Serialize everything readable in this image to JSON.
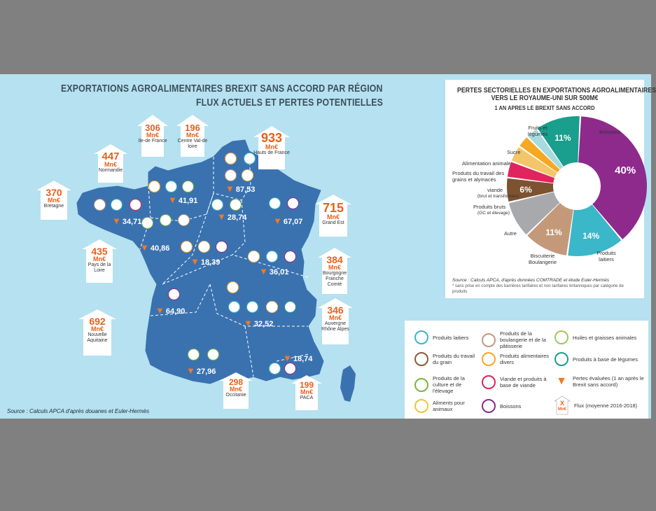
{
  "title": {
    "line1": "EXPORTATIONS AGROALIMENTAIRES BREXIT SANS ACCORD PAR RÉGION",
    "line2": "FLUX ACTUELS ET PERTES POTENTIELLES"
  },
  "currency_unit": "Mn€",
  "regions": [
    {
      "value": "306",
      "name": "Ile-de France"
    },
    {
      "value": "196",
      "name": "Centre Val-de loire"
    },
    {
      "value": "933",
      "name": "Hauts de France"
    },
    {
      "value": "447",
      "name": "Normandie"
    },
    {
      "value": "370",
      "name": "Bretagne"
    },
    {
      "value": "715",
      "name": "Grand Est"
    },
    {
      "value": "435",
      "name": "Pays de la Loire"
    },
    {
      "value": "384",
      "name": "Bourgogne Franche Comté"
    },
    {
      "value": "346",
      "name": "Auvergne Rhône Alpes"
    },
    {
      "value": "692",
      "name": "Nouvelle Aquitaine"
    },
    {
      "value": "298",
      "name": "Occitanie"
    },
    {
      "value": "199",
      "name": "PACA"
    }
  ],
  "losses": [
    "87,53",
    "41,91",
    "28,74",
    "34,71",
    "67,07",
    "40,86",
    "18,39",
    "36,01",
    "64,90",
    "32,52",
    "27,96",
    "18,74"
  ],
  "map_source": "Source : Calculs APCA d'après douanes et Euler-Hermès",
  "pie": {
    "title_line1": "PERTES SECTORIELLES EN EXPORTATIONS AGROALIMENTAIRES",
    "title_line2": "VERS LE ROYAUME-UNI SUR 500M€",
    "subtitle": "1 AN APRES LE BREXIT SANS ACCORD",
    "labels": {
      "boissons": "Boissons",
      "fruits": "Fruits et légumes",
      "sucre": "Sucre",
      "alimentation": "Alimentation animale",
      "grains": "Produits du travail des grains et alymacés",
      "viande": "viande",
      "viande_sub": "(brut et transformés)",
      "bruts": "Produits bruts",
      "bruts_sub": "(GC et élevage)",
      "autre": "Autre",
      "biscuiterie": "Biscuiterie Boulangerie",
      "laitiers": "Produits laitiers"
    },
    "pct": {
      "boissons": "40%",
      "fruits": "11%",
      "bruts": "6%",
      "biscuiterie": "11%",
      "laitiers": "14%"
    },
    "source": "Source : Calculs APCA, d'après données COMTRADE et étude Euler-Hermès",
    "note": "* sans prise en compte des barrières tarifaires et non tarifaires britanniques par catégorie de produits"
  },
  "chart_data": {
    "type": "pie",
    "title": "PERTES SECTORIELLES EN EXPORTATIONS AGROALIMENTAIRES VERS LE ROYAUME-UNI SUR 500M€",
    "categories": [
      "Boissons",
      "Produits laitiers",
      "Biscuiterie Boulangerie",
      "Autre",
      "Produits bruts (GC et élevage)",
      "viande (brut et transformés)",
      "Produits du travail des grains et alymacés",
      "Alimentation animale",
      "Sucre",
      "Fruits et légumes"
    ],
    "values": [
      40,
      14,
      11,
      9,
      6,
      4,
      4,
      3,
      3,
      11
    ],
    "colors": [
      "#8e2a8c",
      "#3ab7c9",
      "#c4997a",
      "#a7a9ac",
      "#7d5230",
      "#e0245e",
      "#f3c66a",
      "#f7a823",
      "#a7dbe0",
      "#1a9e8e"
    ]
  },
  "legend": [
    {
      "label": "Produits laitiers",
      "color": "#3ab7c9"
    },
    {
      "label": "Produits du travail du grain",
      "color": "#8a5b3c"
    },
    {
      "label": "Produits de la culture et de l'élevage",
      "color": "#7bb540"
    },
    {
      "label": "Aliments pour animaux",
      "color": "#f3c33d"
    },
    {
      "label": "Produits de la boulangerie et de la pâtisserie",
      "color": "#c4997a"
    },
    {
      "label": "Produits alimentaires divers",
      "color": "#f7a823"
    },
    {
      "label": "Viande et produits à base de viande",
      "color": "#e0245e"
    },
    {
      "label": "Boissons",
      "color": "#8e2a8c"
    },
    {
      "label": "Huiles et graisses animales",
      "color": "#a2c85a"
    },
    {
      "label": "Produits à base de légumes",
      "color": "#1a9e8e"
    },
    {
      "label": "Pertes évaluées (1 an après le Brexit sans accord)",
      "color": "#f07a26"
    },
    {
      "label": "Flux (moyenne 2016-2018)",
      "color": "#e8601c"
    }
  ],
  "legend_x": "X",
  "colors": {
    "map": "#3a72b0",
    "sea": "#b5e1f0",
    "accent": "#e8601c",
    "arrow": "#f07a26"
  }
}
